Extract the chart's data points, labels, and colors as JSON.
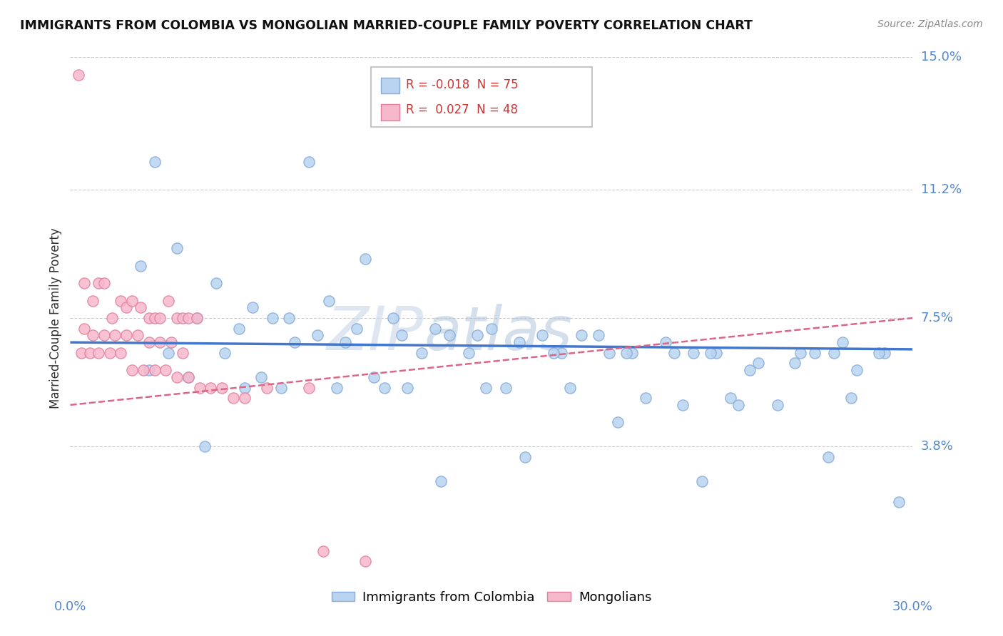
{
  "title": "IMMIGRANTS FROM COLOMBIA VS MONGOLIAN MARRIED-COUPLE FAMILY POVERTY CORRELATION CHART",
  "source": "Source: ZipAtlas.com",
  "ylabel": "Married-Couple Family Poverty",
  "xmin": 0.0,
  "xmax": 30.0,
  "ymin": 0.0,
  "ymax": 15.0,
  "ytick_vals": [
    3.8,
    7.5,
    11.2,
    15.0
  ],
  "ytick_labels": [
    "3.8%",
    "7.5%",
    "11.2%",
    "15.0%"
  ],
  "grid_color": "#cccccc",
  "series1_color": "#b8d4f0",
  "series1_edge": "#88aad8",
  "series2_color": "#f8b8cc",
  "series2_edge": "#e080a0",
  "trendline1_color": "#4477cc",
  "trendline2_color": "#dd6688",
  "series1_label": "Immigrants from Colombia",
  "series2_label": "Mongolians",
  "legend_r1": "-0.018",
  "legend_n1": "75",
  "legend_r2": "0.027",
  "legend_n2": "48",
  "series1_x": [
    3.0,
    8.5,
    2.5,
    3.8,
    5.2,
    6.5,
    7.8,
    9.2,
    10.5,
    11.8,
    13.0,
    14.5,
    16.0,
    17.5,
    18.8,
    20.0,
    21.5,
    23.0,
    24.5,
    26.0,
    27.5,
    29.0,
    4.5,
    6.0,
    7.2,
    8.8,
    10.2,
    11.5,
    13.5,
    15.0,
    16.8,
    18.2,
    19.8,
    21.2,
    22.8,
    24.2,
    25.8,
    27.2,
    28.8,
    5.5,
    8.0,
    9.8,
    12.5,
    14.2,
    17.2,
    19.2,
    22.2,
    26.5,
    28.0,
    2.8,
    4.2,
    6.8,
    9.5,
    12.0,
    14.8,
    17.8,
    20.5,
    23.5,
    25.2,
    27.8,
    3.5,
    7.5,
    11.2,
    15.5,
    19.5,
    23.8,
    6.2,
    10.8,
    16.2,
    21.8,
    27.0,
    4.8,
    13.2,
    22.5,
    29.5
  ],
  "series1_y": [
    12.0,
    12.0,
    9.0,
    9.5,
    8.5,
    7.8,
    7.5,
    8.0,
    9.2,
    7.0,
    7.2,
    7.0,
    6.8,
    6.5,
    7.0,
    6.5,
    6.5,
    6.5,
    6.2,
    6.5,
    6.8,
    6.5,
    7.5,
    7.2,
    7.5,
    7.0,
    7.2,
    7.5,
    7.0,
    7.2,
    7.0,
    7.0,
    6.5,
    6.8,
    6.5,
    6.0,
    6.2,
    6.5,
    6.5,
    6.5,
    6.8,
    6.8,
    6.5,
    6.5,
    6.5,
    6.5,
    6.5,
    6.5,
    6.0,
    6.0,
    5.8,
    5.8,
    5.5,
    5.5,
    5.5,
    5.5,
    5.2,
    5.2,
    5.0,
    5.2,
    6.5,
    5.5,
    5.5,
    5.5,
    4.5,
    5.0,
    5.5,
    5.8,
    3.5,
    5.0,
    3.5,
    3.8,
    2.8,
    2.8,
    2.2
  ],
  "series2_x": [
    0.3,
    0.5,
    0.8,
    1.0,
    1.2,
    1.5,
    1.8,
    2.0,
    2.2,
    2.5,
    2.8,
    3.0,
    3.2,
    3.5,
    3.8,
    4.0,
    4.2,
    4.5,
    0.5,
    0.8,
    1.2,
    1.6,
    2.0,
    2.4,
    2.8,
    3.2,
    3.6,
    4.0,
    0.4,
    0.7,
    1.0,
    1.4,
    1.8,
    2.2,
    2.6,
    3.0,
    3.4,
    3.8,
    4.2,
    4.6,
    5.0,
    5.4,
    5.8,
    6.2,
    7.0,
    8.5,
    9.0,
    10.5
  ],
  "series2_y": [
    14.5,
    8.5,
    8.0,
    8.5,
    8.5,
    7.5,
    8.0,
    7.8,
    8.0,
    7.8,
    7.5,
    7.5,
    7.5,
    8.0,
    7.5,
    7.5,
    7.5,
    7.5,
    7.2,
    7.0,
    7.0,
    7.0,
    7.0,
    7.0,
    6.8,
    6.8,
    6.8,
    6.5,
    6.5,
    6.5,
    6.5,
    6.5,
    6.5,
    6.0,
    6.0,
    6.0,
    6.0,
    5.8,
    5.8,
    5.5,
    5.5,
    5.5,
    5.2,
    5.2,
    5.5,
    5.5,
    0.8,
    0.5
  ],
  "trendline1_x0": 0.0,
  "trendline1_y0": 6.8,
  "trendline1_x1": 30.0,
  "trendline1_y1": 6.6,
  "trendline2_x0": 0.0,
  "trendline2_y0": 5.0,
  "trendline2_x1": 30.0,
  "trendline2_y1": 7.5
}
